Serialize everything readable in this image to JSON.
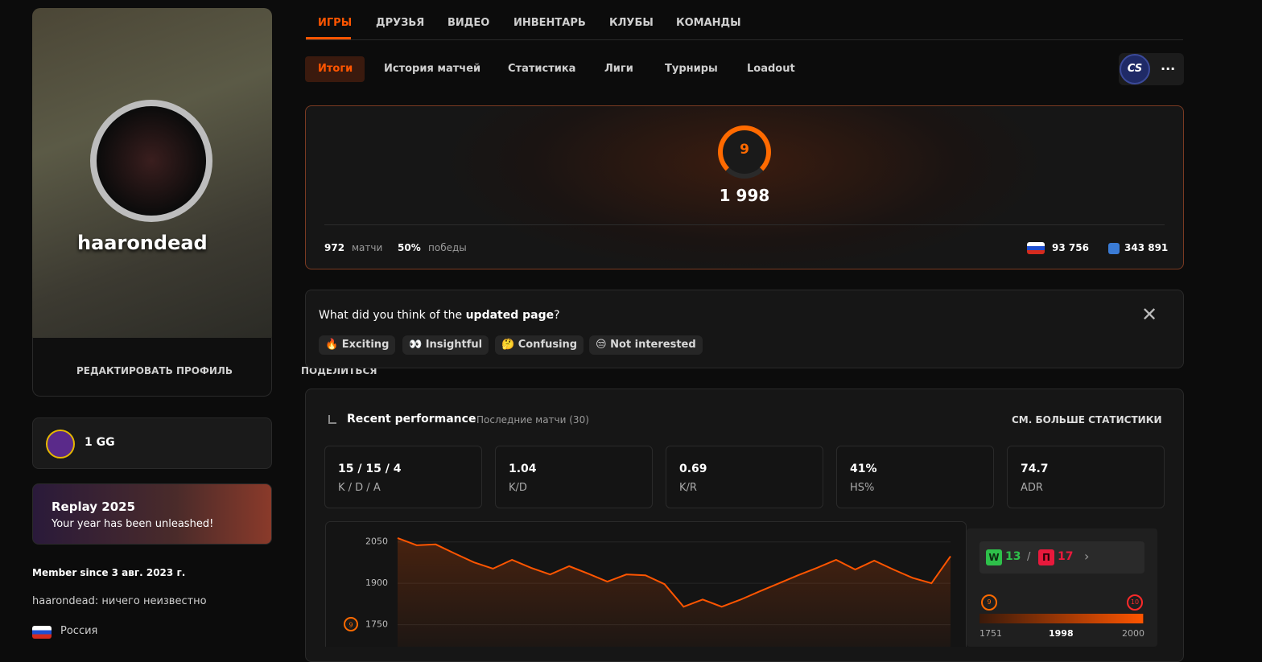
{
  "profile": {
    "username": "haarondead",
    "edit": "РЕДАКТИРОВАТЬ ПРОФИЛЬ",
    "share": "ПОДЕЛИТЬСЯ",
    "gg": "1 GG",
    "replay_title": "Replay 2025",
    "replay_subtitle": "Your year has been unleashed!",
    "member_since": "Member since 3 авг. 2023 г.",
    "bio": "haarondead: ничего неизвестно",
    "country": "Россия"
  },
  "nav": {
    "tabs": [
      "ИГРЫ",
      "ДРУЗЬЯ",
      "ВИДЕО",
      "ИНВЕНТАРЬ",
      "КЛУБЫ",
      "КОМАНДЫ"
    ],
    "subtabs": [
      "Итоги",
      "История матчей",
      "Статистика",
      "Лиги",
      "Турниры",
      "Loadout"
    ],
    "game": "CS"
  },
  "summary": {
    "level": "9",
    "elo": "1 998",
    "matches_value": "972",
    "matches_label": "матчи",
    "win_value": "50%",
    "win_label": "победы",
    "country_rank": "93 756",
    "region_rank": "343 891"
  },
  "feedback": {
    "question_start": "What did you think of the ",
    "question_bold": "updated page",
    "question_end": "?",
    "options": [
      "🔥 Exciting",
      "👀 Insightful",
      "🤔 Confusing",
      "😒 Not interested"
    ]
  },
  "performance": {
    "title": "Recent performance",
    "subtitle": "Последние матчи (30)",
    "more": "СМ. БОЛЬШЕ СТАТИСТИКИ",
    "stats": [
      {
        "value": "15 / 15 / 4",
        "label": "K / D / A"
      },
      {
        "value": "1.04",
        "label": "K/D"
      },
      {
        "value": "0.69",
        "label": "K/R"
      },
      {
        "value": "41%",
        "label": "HS%"
      },
      {
        "value": "74.7",
        "label": "ADR"
      }
    ]
  },
  "chart_data": {
    "type": "line",
    "color": "#ff5500",
    "values": [
      2064,
      2038,
      2041,
      2008,
      1976,
      1953,
      1985,
      1956,
      1932,
      1962,
      1935,
      1906,
      1932,
      1929,
      1897,
      1815,
      1841,
      1815,
      1841,
      1871,
      1900,
      1929,
      1956,
      1985,
      1950,
      1982,
      1950,
      1920,
      1900,
      1998
    ],
    "ylim": [
      1670,
      2090
    ],
    "yticks": [
      2050,
      1900,
      1750
    ],
    "grid": true
  },
  "elo_widget": {
    "wins_label": "W",
    "wins": "13",
    "separator": "/",
    "losses_label": "П",
    "losses": "17",
    "level_from": "9",
    "level_to": "10",
    "min": 1751,
    "value": 1998,
    "max": 2000
  }
}
